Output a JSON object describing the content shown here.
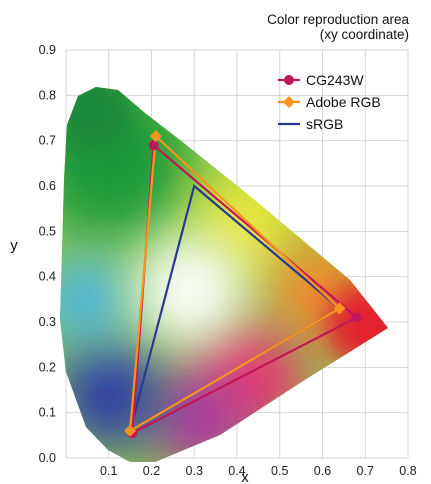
{
  "chart_data": {
    "type": "scatter",
    "title": "Color reproduction area",
    "subtitle": "(xy coordinate)",
    "xlabel": "x",
    "ylabel": "y",
    "xlim": [
      0,
      0.8
    ],
    "ylim": [
      0,
      0.9
    ],
    "xticks": [
      "0.1",
      "0.2",
      "0.3",
      "0.4",
      "0.5",
      "0.6",
      "0.7",
      "0.8"
    ],
    "yticks": [
      "0.0",
      "0.1",
      "0.2",
      "0.3",
      "0.4",
      "0.5",
      "0.6",
      "0.7",
      "0.8",
      "0.9"
    ],
    "grid": true,
    "legend_position": "top-right",
    "series": [
      {
        "name": "CG243W",
        "color": "#c2185b",
        "marker": "circle",
        "x": [
          0.68,
          0.205,
          0.155
        ],
        "y": [
          0.31,
          0.69,
          0.055
        ]
      },
      {
        "name": "Adobe RGB",
        "color": "#f7941d",
        "marker": "diamond",
        "x": [
          0.64,
          0.21,
          0.15
        ],
        "y": [
          0.33,
          0.71,
          0.06
        ]
      },
      {
        "name": "sRGB",
        "color": "#2b3990",
        "marker": "none",
        "x": [
          0.64,
          0.3,
          0.15
        ],
        "y": [
          0.33,
          0.6,
          0.06
        ]
      }
    ]
  }
}
